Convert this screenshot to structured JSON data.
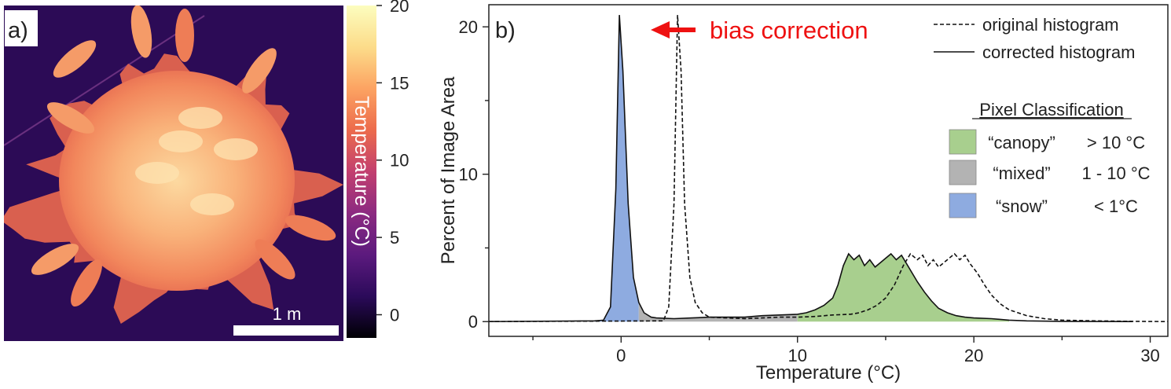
{
  "colors": {
    "canopy": "#a8cf8e",
    "mixed": "#b3b3b3",
    "snow": "#8eabe0",
    "annotation": "#ee1111",
    "scale_bar": "#ffffff",
    "colormap": [
      "#000004",
      "#2b0a5a",
      "#5c1a7e",
      "#8c2a81",
      "#c23f6f",
      "#ec6b4c",
      "#fca362",
      "#fcdc8a",
      "#fcfdbf"
    ],
    "thermal_background": "#2c0b56"
  },
  "panel_a": {
    "label": "a)",
    "scale_bar_label": "1 m",
    "colorbar": {
      "label": "Temperature (°C)",
      "ticks": [
        -1.5,
        20
      ],
      "tick_values": [
        0,
        5,
        10,
        15,
        20
      ],
      "tick_labels": [
        "0",
        "5",
        "10",
        "15",
        "20"
      ],
      "range": [
        -1.5,
        20
      ]
    }
  },
  "chart_data": {
    "type": "area",
    "panel_label": "b)",
    "xlabel": "Temperature (°C)",
    "ylabel": "Percent of Image Area",
    "xlim": [
      -7.5,
      31
    ],
    "ylim": [
      -1,
      21.5
    ],
    "xticks": [
      0,
      10,
      20,
      30
    ],
    "xtick_labels": [
      "0",
      "10",
      "20",
      "30"
    ],
    "yticks": [
      0,
      10,
      20
    ],
    "ytick_labels": [
      "0",
      "10",
      "20"
    ],
    "grid": false,
    "annotation": {
      "text": "bias correction",
      "x": 3.1,
      "y": 20.4
    },
    "legend": {
      "placement": "top-right",
      "entries": [
        {
          "label": "original histogram",
          "style": "dashed"
        },
        {
          "label": "corrected histogram",
          "style": "solid"
        }
      ]
    },
    "classification": {
      "title": "Pixel Classification",
      "classes": [
        {
          "label": "“canopy”",
          "range": "> 10 °C",
          "color": "#a8cf8e"
        },
        {
          "label": "“mixed”",
          "range": "1 - 10 °C",
          "color": "#b3b3b3"
        },
        {
          "label": "“snow”",
          "range": "< 1°C",
          "color": "#8eabe0"
        }
      ]
    },
    "series": [
      {
        "name": "corrected histogram",
        "style": "solid",
        "x": [
          -7.5,
          -1.5,
          -1.0,
          -0.6,
          -0.3,
          -0.1,
          0.1,
          0.4,
          0.7,
          1.0,
          1.3,
          1.7,
          2.0,
          3.0,
          4.0,
          5.0,
          6.0,
          7.0,
          8.0,
          9.0,
          10.0,
          10.5,
          11.0,
          11.5,
          12.0,
          12.3,
          12.6,
          12.9,
          13.2,
          13.5,
          13.8,
          14.1,
          14.4,
          14.7,
          15.0,
          15.3,
          15.6,
          15.9,
          16.2,
          16.5,
          16.8,
          17.2,
          17.6,
          18.0,
          18.5,
          19.0,
          19.5,
          20.0,
          21.0,
          22.0,
          23.0,
          25.0,
          27.0,
          29.0
        ],
        "y": [
          0,
          0.05,
          0.1,
          1.0,
          9.0,
          20.8,
          17.0,
          8.0,
          3.0,
          1.3,
          0.6,
          0.3,
          0.25,
          0.2,
          0.25,
          0.3,
          0.3,
          0.3,
          0.4,
          0.45,
          0.5,
          0.6,
          0.8,
          1.1,
          1.6,
          2.5,
          3.8,
          4.6,
          4.2,
          4.5,
          3.8,
          4.2,
          3.7,
          4.0,
          4.3,
          4.6,
          4.2,
          4.5,
          3.9,
          3.3,
          2.7,
          2.0,
          1.4,
          0.9,
          0.6,
          0.4,
          0.3,
          0.25,
          0.2,
          0.1,
          0.05,
          0.02,
          0.01,
          0
        ]
      },
      {
        "name": "original histogram",
        "style": "dashed",
        "x": [
          -7.5,
          2.4,
          2.7,
          3.0,
          3.2,
          3.4,
          3.6,
          3.9,
          4.2,
          4.6,
          5.0,
          6.0,
          7.0,
          8.0,
          9.0,
          10.0,
          11.0,
          12.0,
          13.0,
          13.5,
          14.0,
          14.5,
          15.0,
          15.5,
          16.0,
          16.4,
          16.8,
          17.1,
          17.4,
          17.7,
          18.0,
          18.3,
          18.6,
          18.9,
          19.2,
          19.5,
          19.8,
          20.2,
          20.6,
          21.0,
          21.5,
          22.0,
          23.0,
          24.0,
          25.0,
          27.0,
          29.0,
          31.0
        ],
        "y": [
          0,
          0.05,
          1.0,
          8.0,
          20.8,
          17.0,
          8.0,
          3.0,
          1.3,
          0.6,
          0.3,
          0.25,
          0.2,
          0.25,
          0.3,
          0.3,
          0.35,
          0.45,
          0.5,
          0.6,
          0.8,
          1.1,
          1.6,
          2.5,
          3.8,
          4.6,
          4.2,
          4.5,
          3.8,
          4.2,
          3.7,
          4.0,
          4.3,
          4.6,
          4.2,
          4.5,
          3.9,
          3.3,
          2.5,
          1.8,
          1.2,
          0.8,
          0.4,
          0.2,
          0.1,
          0.05,
          0.02,
          0
        ]
      }
    ]
  }
}
